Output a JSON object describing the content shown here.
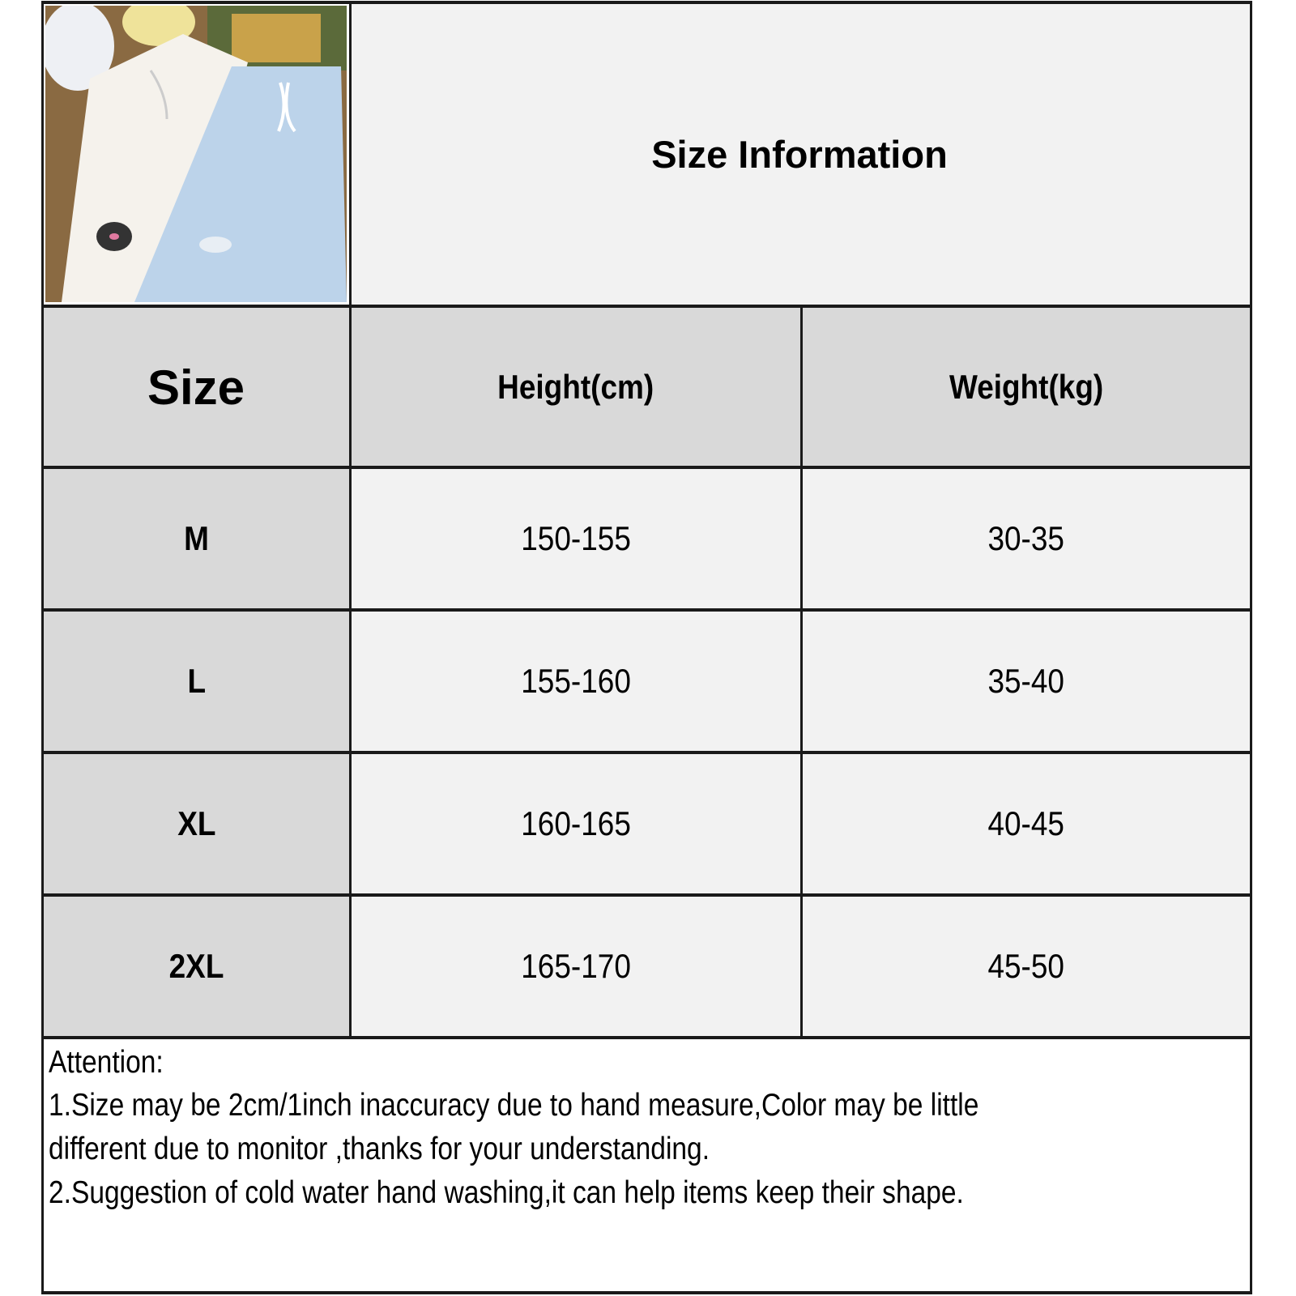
{
  "title": "Size Information",
  "photo": {
    "icon": "product-photo-shorts",
    "colors": [
      "#f4f1ec",
      "#bcd3ea"
    ]
  },
  "table": {
    "headers": [
      "Size",
      "Height(cm)",
      "Weight(kg)"
    ],
    "rows": [
      {
        "size": "M",
        "height": "150-155",
        "weight": "30-35"
      },
      {
        "size": "L",
        "height": "155-160",
        "weight": "35-40"
      },
      {
        "size": "XL",
        "height": "160-165",
        "weight": "40-45"
      },
      {
        "size": "2XL",
        "height": "165-170",
        "weight": "45-50"
      }
    ]
  },
  "attention": {
    "heading": "Attention:",
    "line1": "1.Size may be 2cm/1inch inaccuracy due to hand measure,Color may be little",
    "line2": "different due to monitor ,thanks for your understanding.",
    "line3": "2.Suggestion of cold water hand washing,it can help items keep their shape."
  },
  "colors": {
    "header_bg": "#d9d9d9",
    "cell_bg": "#f2f2f2",
    "border": "#1a1a1a"
  }
}
